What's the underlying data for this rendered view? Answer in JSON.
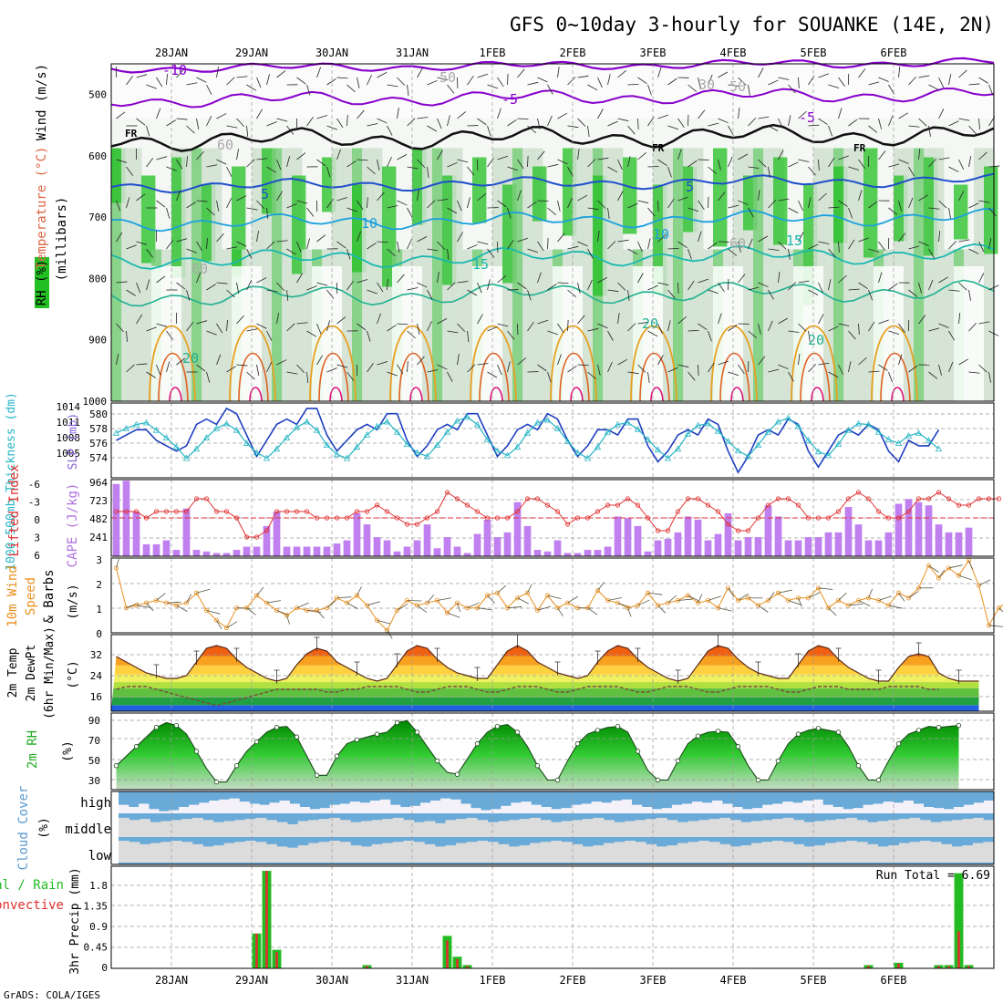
{
  "title": "GFS 0~10day 3-hourly for SOUANKE (14E, 2N)",
  "credit": "GrADS: COLA/IGES",
  "date_labels": [
    "28JAN",
    "29JAN",
    "30JAN",
    "31JAN",
    "1FEB",
    "2FEB",
    "3FEB",
    "4FEB",
    "5FEB",
    "6FEB"
  ],
  "colors": {
    "rh_green": "#22c022",
    "rh_mid": "#77cc77",
    "rh_pale": "#cfe0cf",
    "temp_neg": "#8800cc",
    "temp_pos": "#1f4fcc",
    "temp_pos2": "#1aa0dd",
    "temp_pos3": "#1ab8b0",
    "temp_warm": "#e8a020",
    "slp": "#1f3fbf",
    "thick": "#27b5c5",
    "li": "#e03030",
    "cape": "#c080f0",
    "wind10": "#e89020",
    "rh2m": "#22aa22",
    "cloud": "#6aaad8",
    "precip_total": "#22bb22",
    "precip_conv": "#e03030"
  },
  "panels": {
    "upper": {
      "label_rh": "RH (%)",
      "label_temp": "Temperature (°C)",
      "label_wind": "Wind (m/s)",
      "label_mb": "(millibars)",
      "y_ticks": [
        "500",
        "600",
        "700",
        "800",
        "900",
        "1000"
      ],
      "contour_labels": [
        "-10",
        "-5",
        "-5",
        "FR",
        "FR",
        "FR",
        "5",
        "5",
        "10",
        "10",
        "15",
        "15",
        "20",
        "20",
        "20",
        "60",
        "60",
        "50",
        "60",
        "50",
        "30"
      ]
    },
    "slp": {
      "label_left": "1000-500mb Thickness (dm)",
      "label_right": "SLP (mb)",
      "y_ticks_left": [
        "580",
        "578",
        "576",
        "574"
      ],
      "y_ticks_right": [
        "1014",
        "1011",
        "1008",
        "1005"
      ]
    },
    "cape": {
      "label_left": "Lifted Index",
      "label_right": "CAPE (J/kg)",
      "y_ticks_left": [
        "-6",
        "-3",
        "0",
        "3",
        "6"
      ],
      "y_ticks_right": [
        "964",
        "723",
        "482",
        "241"
      ]
    },
    "wind": {
      "label_a": "10m Wind",
      "label_b": "Speed",
      "label_c": "& Barbs",
      "unit": "(m/s)",
      "y_ticks": [
        "3",
        "2",
        "1",
        "0"
      ]
    },
    "temp": {
      "label_a": "2m Temp",
      "label_b": "2m DewPt",
      "label_c": "(6hr Min/Max)",
      "unit": "(°C)",
      "y_ticks": [
        "32",
        "24",
        "16"
      ]
    },
    "rh": {
      "label": "2m RH",
      "unit": "(%)",
      "y_ticks": [
        "90",
        "70",
        "50",
        "30"
      ]
    },
    "cloud": {
      "label": "Cloud Cover",
      "unit": "(%)",
      "levels": [
        "high",
        "middle",
        "low"
      ]
    },
    "precip": {
      "label_a": "Total / Rain",
      "label_b": "Convective",
      "unit": "3hr Precip (mm)",
      "y_ticks": [
        "1.8",
        "1.35",
        "0.9",
        "0.45",
        "0"
      ],
      "run_total": "Run Total = 6.69"
    }
  },
  "chart_data": {
    "type": "line",
    "x_start": "27JAN 18Z",
    "x_step_hours": 3,
    "slp_mb": [
      1009,
      1010,
      1011,
      1011,
      1009,
      1008,
      1007,
      1008,
      1012,
      1013,
      1012,
      1015,
      1014,
      1010,
      1006,
      1009,
      1012,
      1013,
      1012,
      1015,
      1015,
      1010,
      1007,
      1009,
      1011,
      1012,
      1011,
      1014,
      1014,
      1009,
      1006,
      1008,
      1011,
      1012,
      1011,
      1014,
      1014,
      1010,
      1006,
      1008,
      1011,
      1012,
      1011,
      1014,
      1013,
      1009,
      1006,
      1008,
      1011,
      1011,
      1010,
      1013,
      1013,
      1008,
      1005,
      1007,
      1010,
      1011,
      1010,
      1013,
      1012,
      1007,
      1003,
      1006,
      1010,
      1011,
      1010,
      1013,
      1012,
      1007,
      1004,
      1007,
      1010,
      1011,
      1010,
      1012,
      1011,
      1007,
      1005,
      1009,
      1008,
      1008,
      1011
    ],
    "thickness_dm": [
      578.3,
      578.8,
      579.2,
      579.4,
      578.6,
      577.8,
      576.8,
      575.6,
      576.6,
      577.8,
      578.8,
      579.3,
      578.6,
      577.2,
      576.2,
      575.6,
      576.6,
      577.8,
      578.9,
      579.5,
      578.6,
      577.0,
      576.0,
      575.6,
      576.8,
      578.1,
      579.0,
      579.5,
      578.4,
      577.1,
      576.2,
      575.8,
      577.0,
      578.4,
      579.6,
      580.0,
      579.2,
      577.6,
      576.4,
      575.9,
      576.8,
      578.3,
      579.4,
      579.7,
      578.8,
      577.4,
      576.2,
      575.6,
      576.8,
      578.4,
      579.2,
      579.4,
      578.7,
      577.6,
      576.5,
      575.6,
      576.6,
      578.2,
      579.1,
      579.3,
      578.5,
      577.4,
      576.4,
      575.8,
      577.0,
      578.4,
      579.5,
      579.9,
      579.0,
      577.5,
      576.3,
      575.9,
      577.1,
      578.6,
      579.3,
      579.2,
      578.4,
      577.6,
      577.2,
      578.0,
      578.3,
      577.5,
      576.6
    ],
    "li": [
      -1,
      -1,
      -1,
      0,
      -1,
      -1,
      -1,
      -1,
      -3,
      -3,
      -1,
      -1,
      0,
      3,
      3,
      2,
      -1,
      -1,
      -1,
      -1,
      0,
      0,
      0,
      0,
      -1,
      -1,
      -2,
      -1,
      0,
      1,
      1,
      0,
      -1,
      -4,
      -3,
      -2,
      -1,
      0,
      0,
      0,
      -1,
      -3,
      -3,
      -2,
      -1,
      1,
      0,
      0,
      -1,
      -2,
      -2,
      -3,
      -2,
      0,
      2,
      2,
      -1,
      -3,
      -3,
      -2,
      -1,
      1,
      2,
      2,
      0,
      -2,
      -3,
      -3,
      -2,
      0,
      0,
      0,
      -1,
      -3,
      -4,
      -3,
      -1,
      0,
      0,
      -1,
      -3,
      -3,
      -4,
      -3,
      -2,
      -2,
      -3,
      -3,
      -3
    ],
    "cape_jkg": [
      910,
      950,
      560,
      150,
      150,
      200,
      80,
      600,
      80,
      60,
      40,
      40,
      80,
      120,
      120,
      380,
      560,
      120,
      120,
      120,
      120,
      120,
      160,
      200,
      540,
      400,
      240,
      200,
      60,
      120,
      200,
      400,
      100,
      240,
      120,
      40,
      280,
      460,
      240,
      300,
      680,
      380,
      80,
      60,
      200,
      40,
      40,
      80,
      80,
      120,
      500,
      480,
      380,
      60,
      200,
      220,
      300,
      500,
      460,
      200,
      280,
      540,
      200,
      240,
      240,
      640,
      500,
      200,
      200,
      240,
      240,
      300,
      300,
      620,
      400,
      200,
      200,
      300,
      660,
      720,
      680,
      640,
      400,
      300,
      300,
      360
    ],
    "wind10_ms": [
      2.6,
      1.0,
      1.1,
      1.2,
      1.3,
      1.2,
      1.1,
      1.2,
      1.6,
      0.9,
      0.5,
      0.2,
      1.0,
      1.0,
      1.5,
      1.2,
      0.9,
      0.7,
      1.0,
      0.9,
      0.9,
      1.0,
      1.4,
      1.2,
      1.5,
      1.1,
      0.5,
      0.1,
      0.9,
      1.3,
      1.1,
      1.2,
      1.3,
      0.8,
      1.2,
      1.0,
      1.0,
      1.5,
      1.6,
      1.0,
      1.4,
      1.6,
      0.9,
      1.5,
      1.0,
      1.2,
      1.0,
      1.0,
      1.7,
      1.3,
      1.2,
      1.0,
      1.1,
      1.6,
      1.1,
      1.2,
      1.3,
      1.5,
      1.2,
      1.3,
      1.0,
      1.8,
      1.3,
      1.4,
      1.1,
      1.3,
      1.6,
      1.3,
      1.4,
      1.4,
      1.8,
      1.0,
      1.3,
      1.1,
      1.3,
      1.4,
      1.3,
      1.1,
      1.6,
      1.4,
      1.8,
      2.7,
      2.2,
      2.6,
      2.3,
      2.9,
      1.9,
      0.3,
      1.0,
      1.3,
      1.5
    ],
    "temp2m_c": [
      31,
      29,
      27,
      25,
      24,
      23,
      23,
      24,
      29,
      34,
      35,
      34,
      30,
      27,
      25,
      23,
      22,
      23,
      28,
      32,
      34,
      33,
      29,
      27,
      25,
      23,
      22,
      23,
      28,
      33,
      35,
      34,
      30,
      27,
      25,
      24,
      23,
      23,
      28,
      33,
      35,
      33,
      29,
      27,
      25,
      24,
      23,
      24,
      29,
      33,
      35,
      34,
      30,
      27,
      25,
      23,
      22,
      23,
      28,
      33,
      35,
      34,
      30,
      27,
      25,
      24,
      23,
      23,
      28,
      33,
      35,
      34,
      30,
      27,
      25,
      23,
      22,
      22,
      27,
      31,
      32,
      31,
      25,
      23,
      22,
      22,
      22
    ],
    "dewpt2m_c": [
      19,
      20,
      20,
      20,
      19,
      18,
      17,
      16,
      15,
      14,
      13,
      14,
      15,
      16,
      17,
      18,
      19,
      19,
      19,
      19,
      19,
      18,
      18,
      19,
      19,
      20,
      20,
      20,
      20,
      19,
      18,
      18,
      19,
      20,
      20,
      20,
      19,
      18,
      18,
      19,
      20,
      20,
      20,
      19,
      18,
      18,
      19,
      20,
      20,
      20,
      20,
      19,
      18,
      18,
      19,
      20,
      20,
      20,
      19,
      18,
      18,
      19,
      20,
      20,
      20,
      20,
      19,
      18,
      18,
      19,
      20,
      20,
      20,
      19,
      19,
      19,
      19,
      20,
      20,
      20,
      20,
      19,
      19
    ],
    "rh2m_pct": [
      45,
      55,
      65,
      75,
      85,
      90,
      87,
      78,
      60,
      42,
      28,
      28,
      45,
      60,
      70,
      80,
      85,
      86,
      75,
      55,
      35,
      35,
      55,
      68,
      72,
      75,
      78,
      80,
      90,
      92,
      80,
      65,
      50,
      38,
      36,
      52,
      68,
      80,
      86,
      88,
      80,
      65,
      45,
      30,
      30,
      50,
      68,
      78,
      82,
      85,
      86,
      80,
      60,
      40,
      30,
      30,
      50,
      68,
      76,
      80,
      81,
      80,
      65,
      45,
      30,
      30,
      50,
      68,
      78,
      82,
      84,
      82,
      80,
      65,
      45,
      30,
      30,
      50,
      68,
      78,
      82,
      86,
      85,
      86,
      87
    ],
    "cloud_high": [
      60,
      70,
      55,
      80,
      90,
      85,
      70,
      60,
      50,
      40,
      35,
      30,
      45,
      55,
      60,
      50,
      40,
      55,
      70,
      80,
      75,
      60,
      55,
      45,
      50,
      40,
      35,
      60,
      70,
      65,
      50,
      40,
      30,
      35,
      55,
      75,
      85,
      80,
      65,
      50,
      45,
      60,
      70,
      80,
      75,
      60,
      55,
      45,
      50,
      40,
      35,
      60,
      70,
      80,
      75,
      60,
      55,
      45,
      50,
      40,
      55,
      70,
      80,
      75,
      60,
      55,
      45,
      50,
      40,
      35,
      60,
      70,
      80,
      75,
      60,
      55,
      45,
      50,
      40,
      55,
      70,
      75,
      80,
      70,
      60,
      50,
      40
    ],
    "cloud_mid": [
      10,
      20,
      15,
      30,
      25,
      20,
      15,
      10,
      20,
      30,
      25,
      20,
      15,
      10,
      20,
      30,
      40,
      25,
      20,
      15,
      10,
      20,
      30,
      25,
      20,
      15,
      10,
      20,
      30,
      25,
      35,
      20,
      15,
      10,
      20,
      30,
      25,
      20,
      15,
      10,
      20,
      30,
      25,
      20,
      15,
      10,
      20,
      30,
      25,
      20,
      15,
      10,
      20,
      30,
      25,
      20,
      15,
      10,
      20,
      30,
      25,
      20,
      15,
      10,
      20,
      30,
      25,
      20,
      15,
      10,
      20,
      30,
      25,
      20,
      15,
      10,
      20,
      30,
      25,
      20,
      15,
      10,
      20
    ],
    "cloud_low": [
      5,
      10,
      20,
      15,
      10,
      5,
      10,
      20,
      30,
      25,
      15,
      10,
      5,
      10,
      20,
      30,
      35,
      25,
      15,
      10,
      5,
      10,
      25,
      30,
      20,
      15,
      10,
      5,
      10,
      20,
      30,
      25,
      15,
      10,
      5,
      10,
      20,
      30,
      25,
      15,
      10,
      5,
      10,
      20,
      30,
      25,
      15,
      10,
      5,
      10,
      20,
      30,
      25,
      15,
      10,
      5,
      10,
      20,
      30,
      25,
      15,
      10,
      5,
      10,
      20,
      30,
      25,
      15,
      10,
      5,
      10,
      20,
      30,
      25,
      15,
      10,
      5,
      10,
      20,
      30,
      25,
      15,
      10
    ],
    "precip_total_mm": [
      0,
      0,
      0,
      0,
      0,
      0,
      0,
      0,
      0,
      0,
      0,
      0,
      0,
      0,
      0.75,
      2.1,
      0.4,
      0,
      0,
      0,
      0,
      0,
      0,
      0,
      0,
      0.07,
      0,
      0,
      0,
      0,
      0,
      0,
      0,
      0.7,
      0.25,
      0.07,
      0,
      0,
      0,
      0,
      0,
      0,
      0,
      0,
      0,
      0,
      0,
      0,
      0,
      0,
      0,
      0,
      0,
      0,
      0,
      0,
      0,
      0,
      0,
      0,
      0,
      0,
      0,
      0,
      0,
      0,
      0,
      0,
      0,
      0,
      0,
      0,
      0,
      0,
      0,
      0.07,
      0,
      0,
      0.12,
      0,
      0,
      0,
      0.07,
      0.07,
      2.05,
      0.07,
      0,
      0,
      0
    ],
    "precip_conv_mm": [
      0,
      0,
      0,
      0,
      0,
      0,
      0,
      0,
      0,
      0,
      0,
      0,
      0,
      0,
      0.75,
      2.1,
      0.35,
      0,
      0,
      0,
      0,
      0,
      0,
      0,
      0,
      0.05,
      0,
      0,
      0,
      0,
      0,
      0,
      0,
      0.6,
      0.2,
      0.05,
      0,
      0,
      0,
      0,
      0,
      0,
      0,
      0,
      0,
      0,
      0,
      0,
      0,
      0,
      0,
      0,
      0,
      0,
      0,
      0,
      0,
      0,
      0,
      0,
      0,
      0,
      0,
      0,
      0,
      0,
      0,
      0,
      0,
      0,
      0,
      0,
      0,
      0,
      0,
      0.05,
      0,
      0,
      0.1,
      0,
      0,
      0,
      0.05,
      0.05,
      0.8,
      0.05,
      0,
      0,
      0
    ],
    "ylim": {
      "upper_mb": [
        450,
        1000
      ],
      "slp_mb": [
        1002,
        1016
      ],
      "thickness_dm": [
        573.5,
        581.5
      ],
      "li": [
        6,
        -6
      ],
      "cape": [
        0,
        964
      ],
      "wind10": [
        0,
        3
      ],
      "temp2m": [
        11,
        39
      ],
      "rh2m": [
        20,
        100
      ],
      "precip": [
        0,
        2.2
      ]
    }
  }
}
